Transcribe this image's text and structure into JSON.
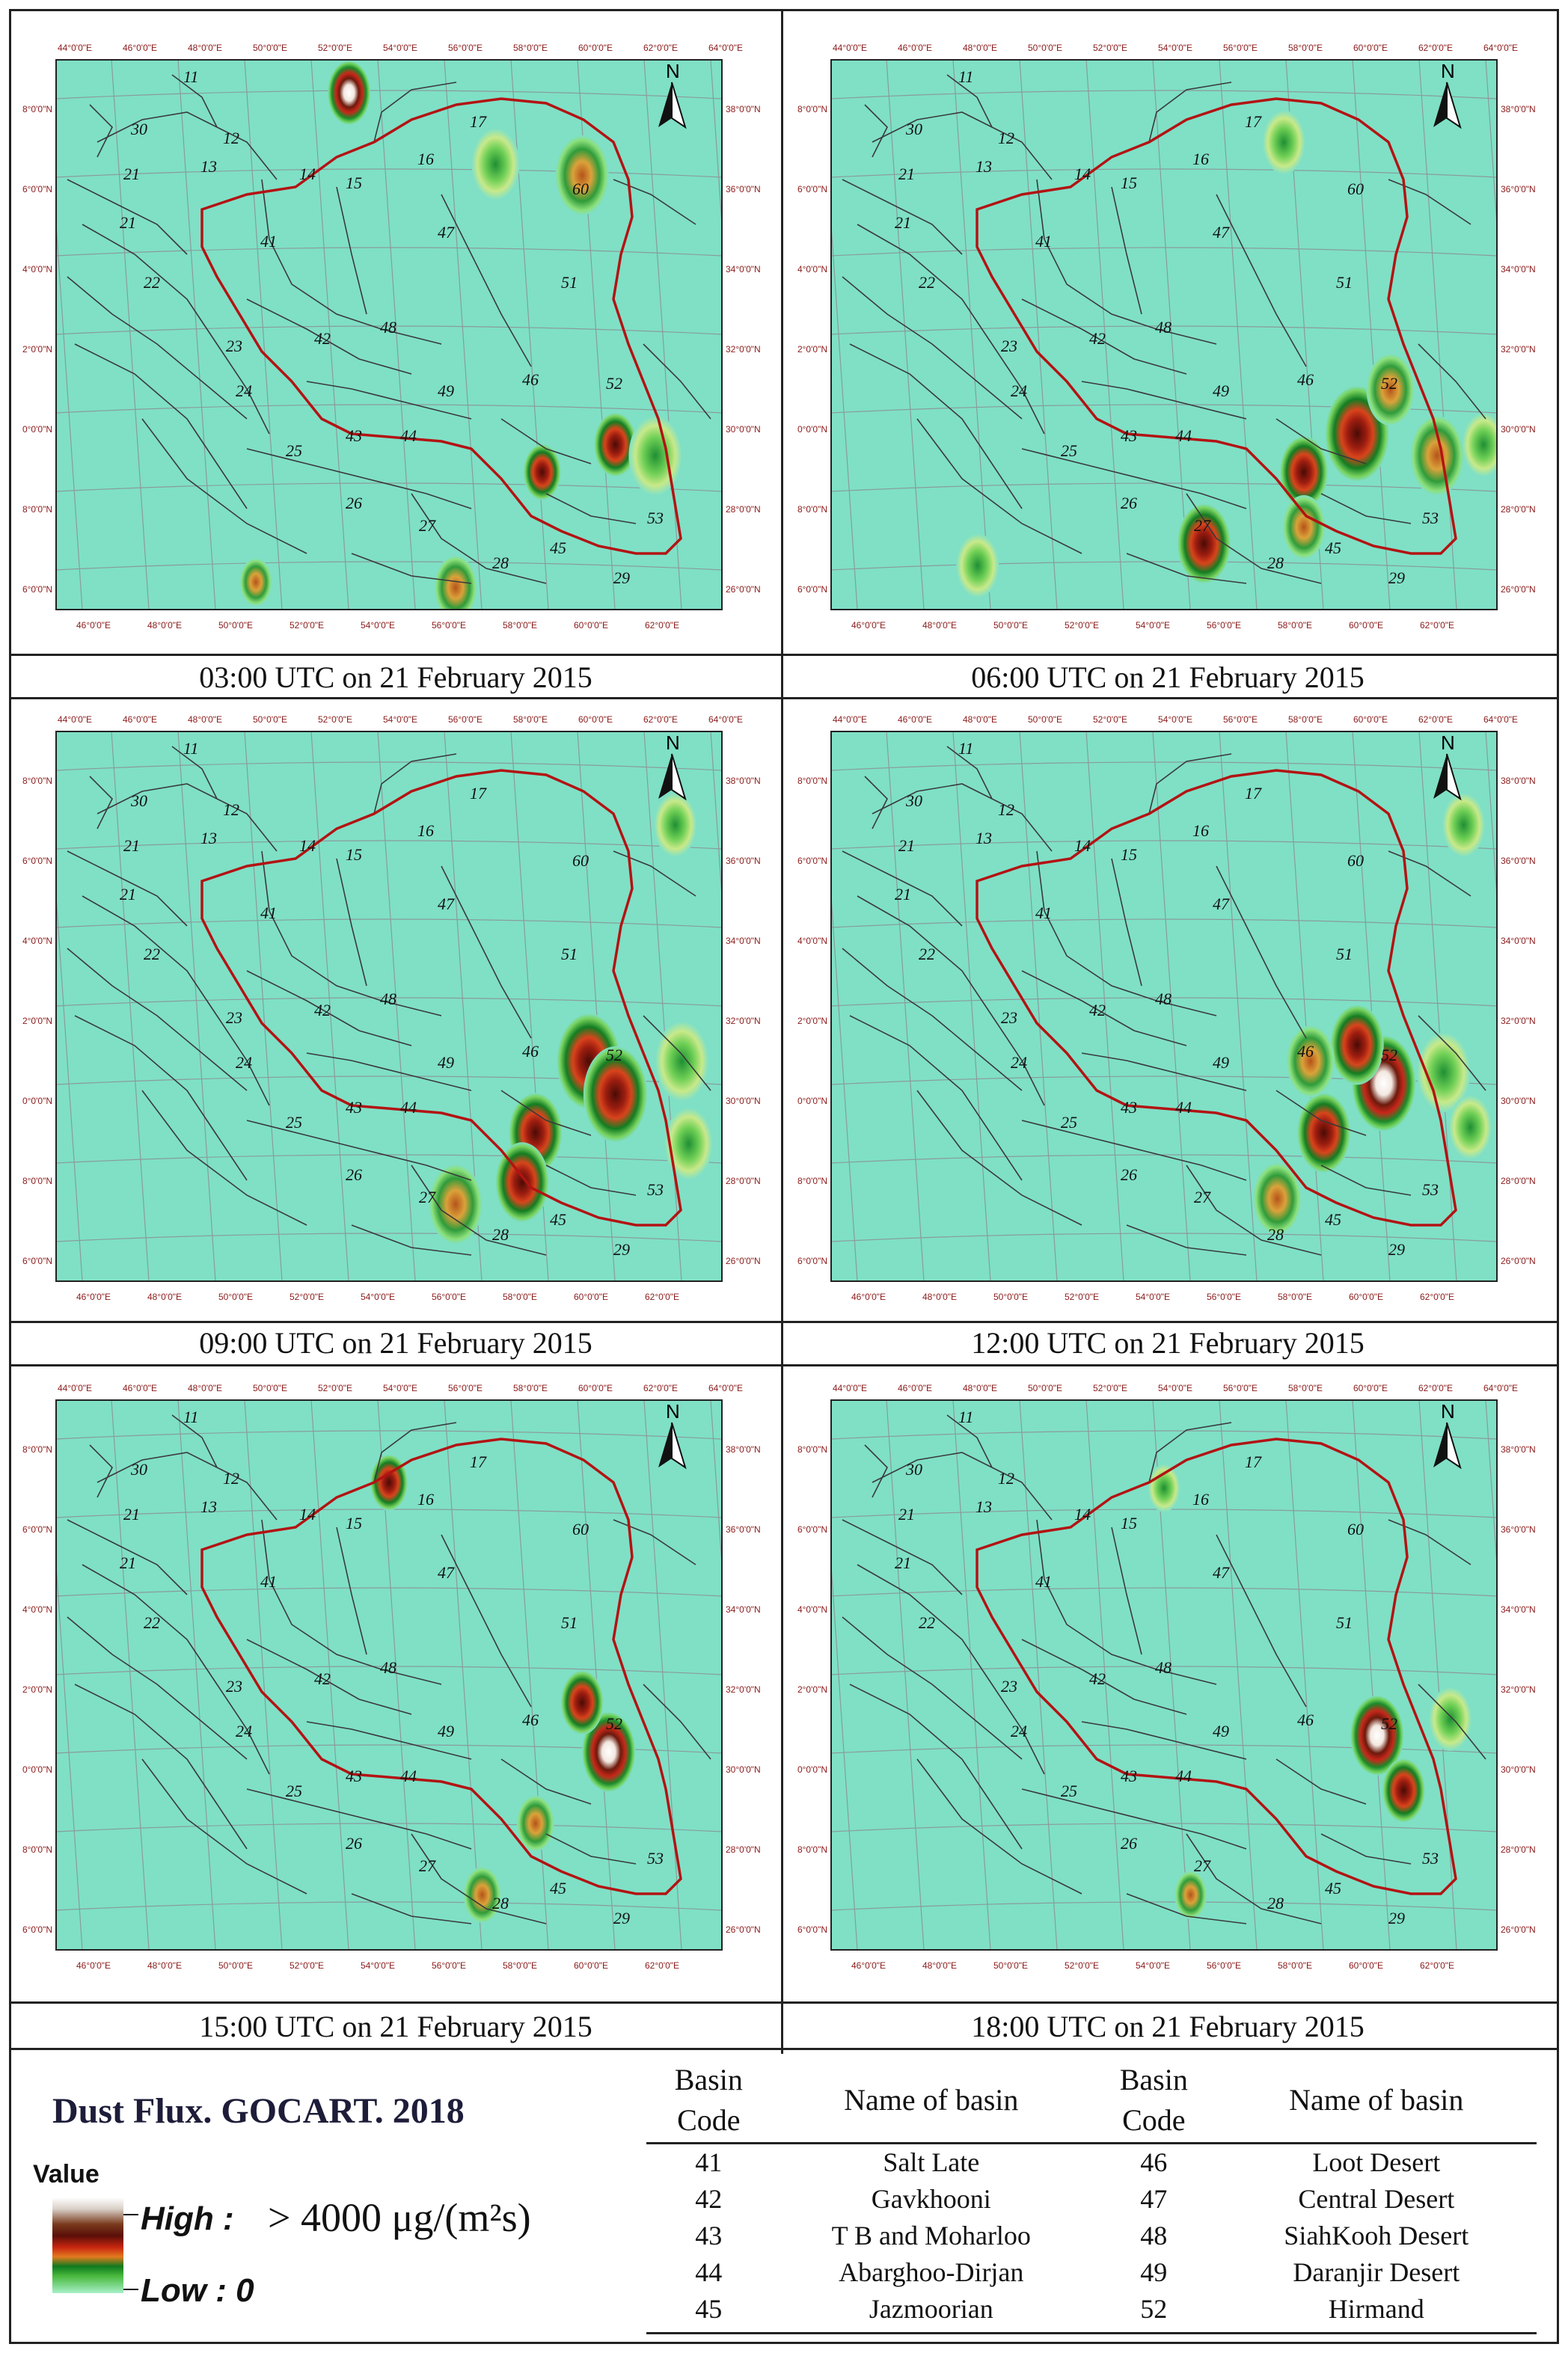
{
  "panels": [
    {
      "caption": "03:00 UTC on 21 February 2015",
      "hotspots": [
        [
          0.79,
          0.21,
          0.05,
          "o"
        ],
        [
          0.73,
          0.75,
          0.035,
          "r"
        ],
        [
          0.84,
          0.7,
          0.04,
          "r"
        ],
        [
          0.66,
          0.19,
          0.045,
          "g"
        ],
        [
          0.6,
          0.96,
          0.04,
          "o"
        ],
        [
          0.44,
          0.06,
          0.04,
          "w"
        ],
        [
          0.9,
          0.72,
          0.05,
          "g"
        ],
        [
          0.3,
          0.95,
          0.03,
          "o"
        ]
      ]
    },
    {
      "caption": "06:00 UTC on 21 February 2015",
      "hotspots": [
        [
          0.79,
          0.68,
          0.06,
          "r"
        ],
        [
          0.91,
          0.72,
          0.05,
          "o"
        ],
        [
          0.84,
          0.6,
          0.045,
          "o"
        ],
        [
          0.71,
          0.75,
          0.045,
          "r"
        ],
        [
          0.71,
          0.85,
          0.04,
          "o"
        ],
        [
          0.56,
          0.88,
          0.05,
          "r"
        ],
        [
          0.68,
          0.15,
          0.04,
          "g"
        ],
        [
          0.22,
          0.92,
          0.04,
          "g"
        ],
        [
          0.98,
          0.7,
          0.04,
          "g"
        ]
      ]
    },
    {
      "caption": "09:00 UTC on 21 February 2015",
      "hotspots": [
        [
          0.8,
          0.6,
          0.06,
          "r"
        ],
        [
          0.84,
          0.66,
          0.06,
          "r"
        ],
        [
          0.72,
          0.73,
          0.05,
          "r"
        ],
        [
          0.7,
          0.82,
          0.05,
          "r"
        ],
        [
          0.6,
          0.86,
          0.05,
          "o"
        ],
        [
          0.94,
          0.6,
          0.05,
          "g"
        ],
        [
          0.93,
          0.17,
          0.04,
          "g"
        ],
        [
          0.95,
          0.75,
          0.045,
          "g"
        ]
      ]
    },
    {
      "caption": "12:00 UTC on 21 February 2015",
      "hotspots": [
        [
          0.83,
          0.64,
          0.06,
          "w"
        ],
        [
          0.79,
          0.57,
          0.05,
          "r"
        ],
        [
          0.74,
          0.73,
          0.05,
          "r"
        ],
        [
          0.72,
          0.6,
          0.045,
          "o"
        ],
        [
          0.67,
          0.85,
          0.045,
          "o"
        ],
        [
          0.92,
          0.62,
          0.05,
          "g"
        ],
        [
          0.95,
          0.17,
          0.04,
          "g"
        ],
        [
          0.96,
          0.72,
          0.04,
          "g"
        ]
      ]
    },
    {
      "caption": "15:00 UTC on 21 February 2015",
      "hotspots": [
        [
          0.83,
          0.64,
          0.05,
          "w"
        ],
        [
          0.79,
          0.55,
          0.04,
          "r"
        ],
        [
          0.72,
          0.77,
          0.035,
          "o"
        ],
        [
          0.64,
          0.9,
          0.035,
          "o"
        ],
        [
          0.5,
          0.15,
          0.035,
          "r"
        ]
      ]
    },
    {
      "caption": "18:00 UTC on 21 February 2015",
      "hotspots": [
        [
          0.82,
          0.61,
          0.05,
          "w"
        ],
        [
          0.86,
          0.71,
          0.04,
          "r"
        ],
        [
          0.54,
          0.9,
          0.03,
          "o"
        ],
        [
          0.93,
          0.58,
          0.04,
          "g"
        ],
        [
          0.5,
          0.16,
          0.03,
          "g"
        ]
      ]
    }
  ],
  "map": {
    "north_label": "N",
    "top_lon": [
      "44°0'0\"E",
      "46°0'0\"E",
      "48°0'0\"E",
      "50°0'0\"E",
      "52°0'0\"E",
      "54°0'0\"E",
      "56°0'0\"E",
      "58°0'0\"E",
      "60°0'0\"E",
      "62°0'0\"E",
      "64°0'0\"E"
    ],
    "bottom_lon": [
      "46°0'0\"E",
      "48°0'0\"E",
      "50°0'0\"E",
      "52°0'0\"E",
      "54°0'0\"E",
      "56°0'0\"E",
      "58°0'0\"E",
      "60°0'0\"E",
      "62°0'0\"E"
    ],
    "lat": [
      "38°0'0\"N",
      "36°0'0\"N",
      "34°0'0\"N",
      "32°0'0\"N",
      "30°0'0\"N",
      "28°0'0\"N",
      "26°0'0\"N"
    ],
    "basin_labels": [
      "11",
      "30",
      "12",
      "21",
      "13",
      "14",
      "15",
      "16",
      "17",
      "60",
      "21",
      "41",
      "47",
      "51",
      "22",
      "23",
      "42",
      "48",
      "24",
      "49",
      "46",
      "52",
      "25",
      "43",
      "44",
      "26",
      "27",
      "45",
      "53",
      "28",
      "29"
    ],
    "colors": {
      "background": "#7fe0c6",
      "border": "#b31313",
      "basin_line": "#3a3a3a",
      "grid": "#8a9b9b",
      "label": "#8b1a1a"
    }
  },
  "legend": {
    "title": "Dust Flux. GOCART. 2018",
    "value_label": "Value",
    "high_label": "High :",
    "high_value": "> 4000 μg/(m²s)",
    "low_label": "Low : 0"
  },
  "table": {
    "headers": [
      "Basin Code",
      "Name of basin",
      "Basin Code",
      "Name of basin"
    ],
    "rows": [
      [
        "41",
        "Salt Late",
        "46",
        "Loot Desert"
      ],
      [
        "42",
        "Gavkhooni",
        "47",
        "Central Desert"
      ],
      [
        "43",
        "T B and Moharloo",
        "48",
        "SiahKooh Desert"
      ],
      [
        "44",
        "Abarghoo-Dirjan",
        "49",
        "Daranjir Desert"
      ],
      [
        "45",
        "Jazmoorian",
        "52",
        "Hirmand"
      ]
    ]
  }
}
